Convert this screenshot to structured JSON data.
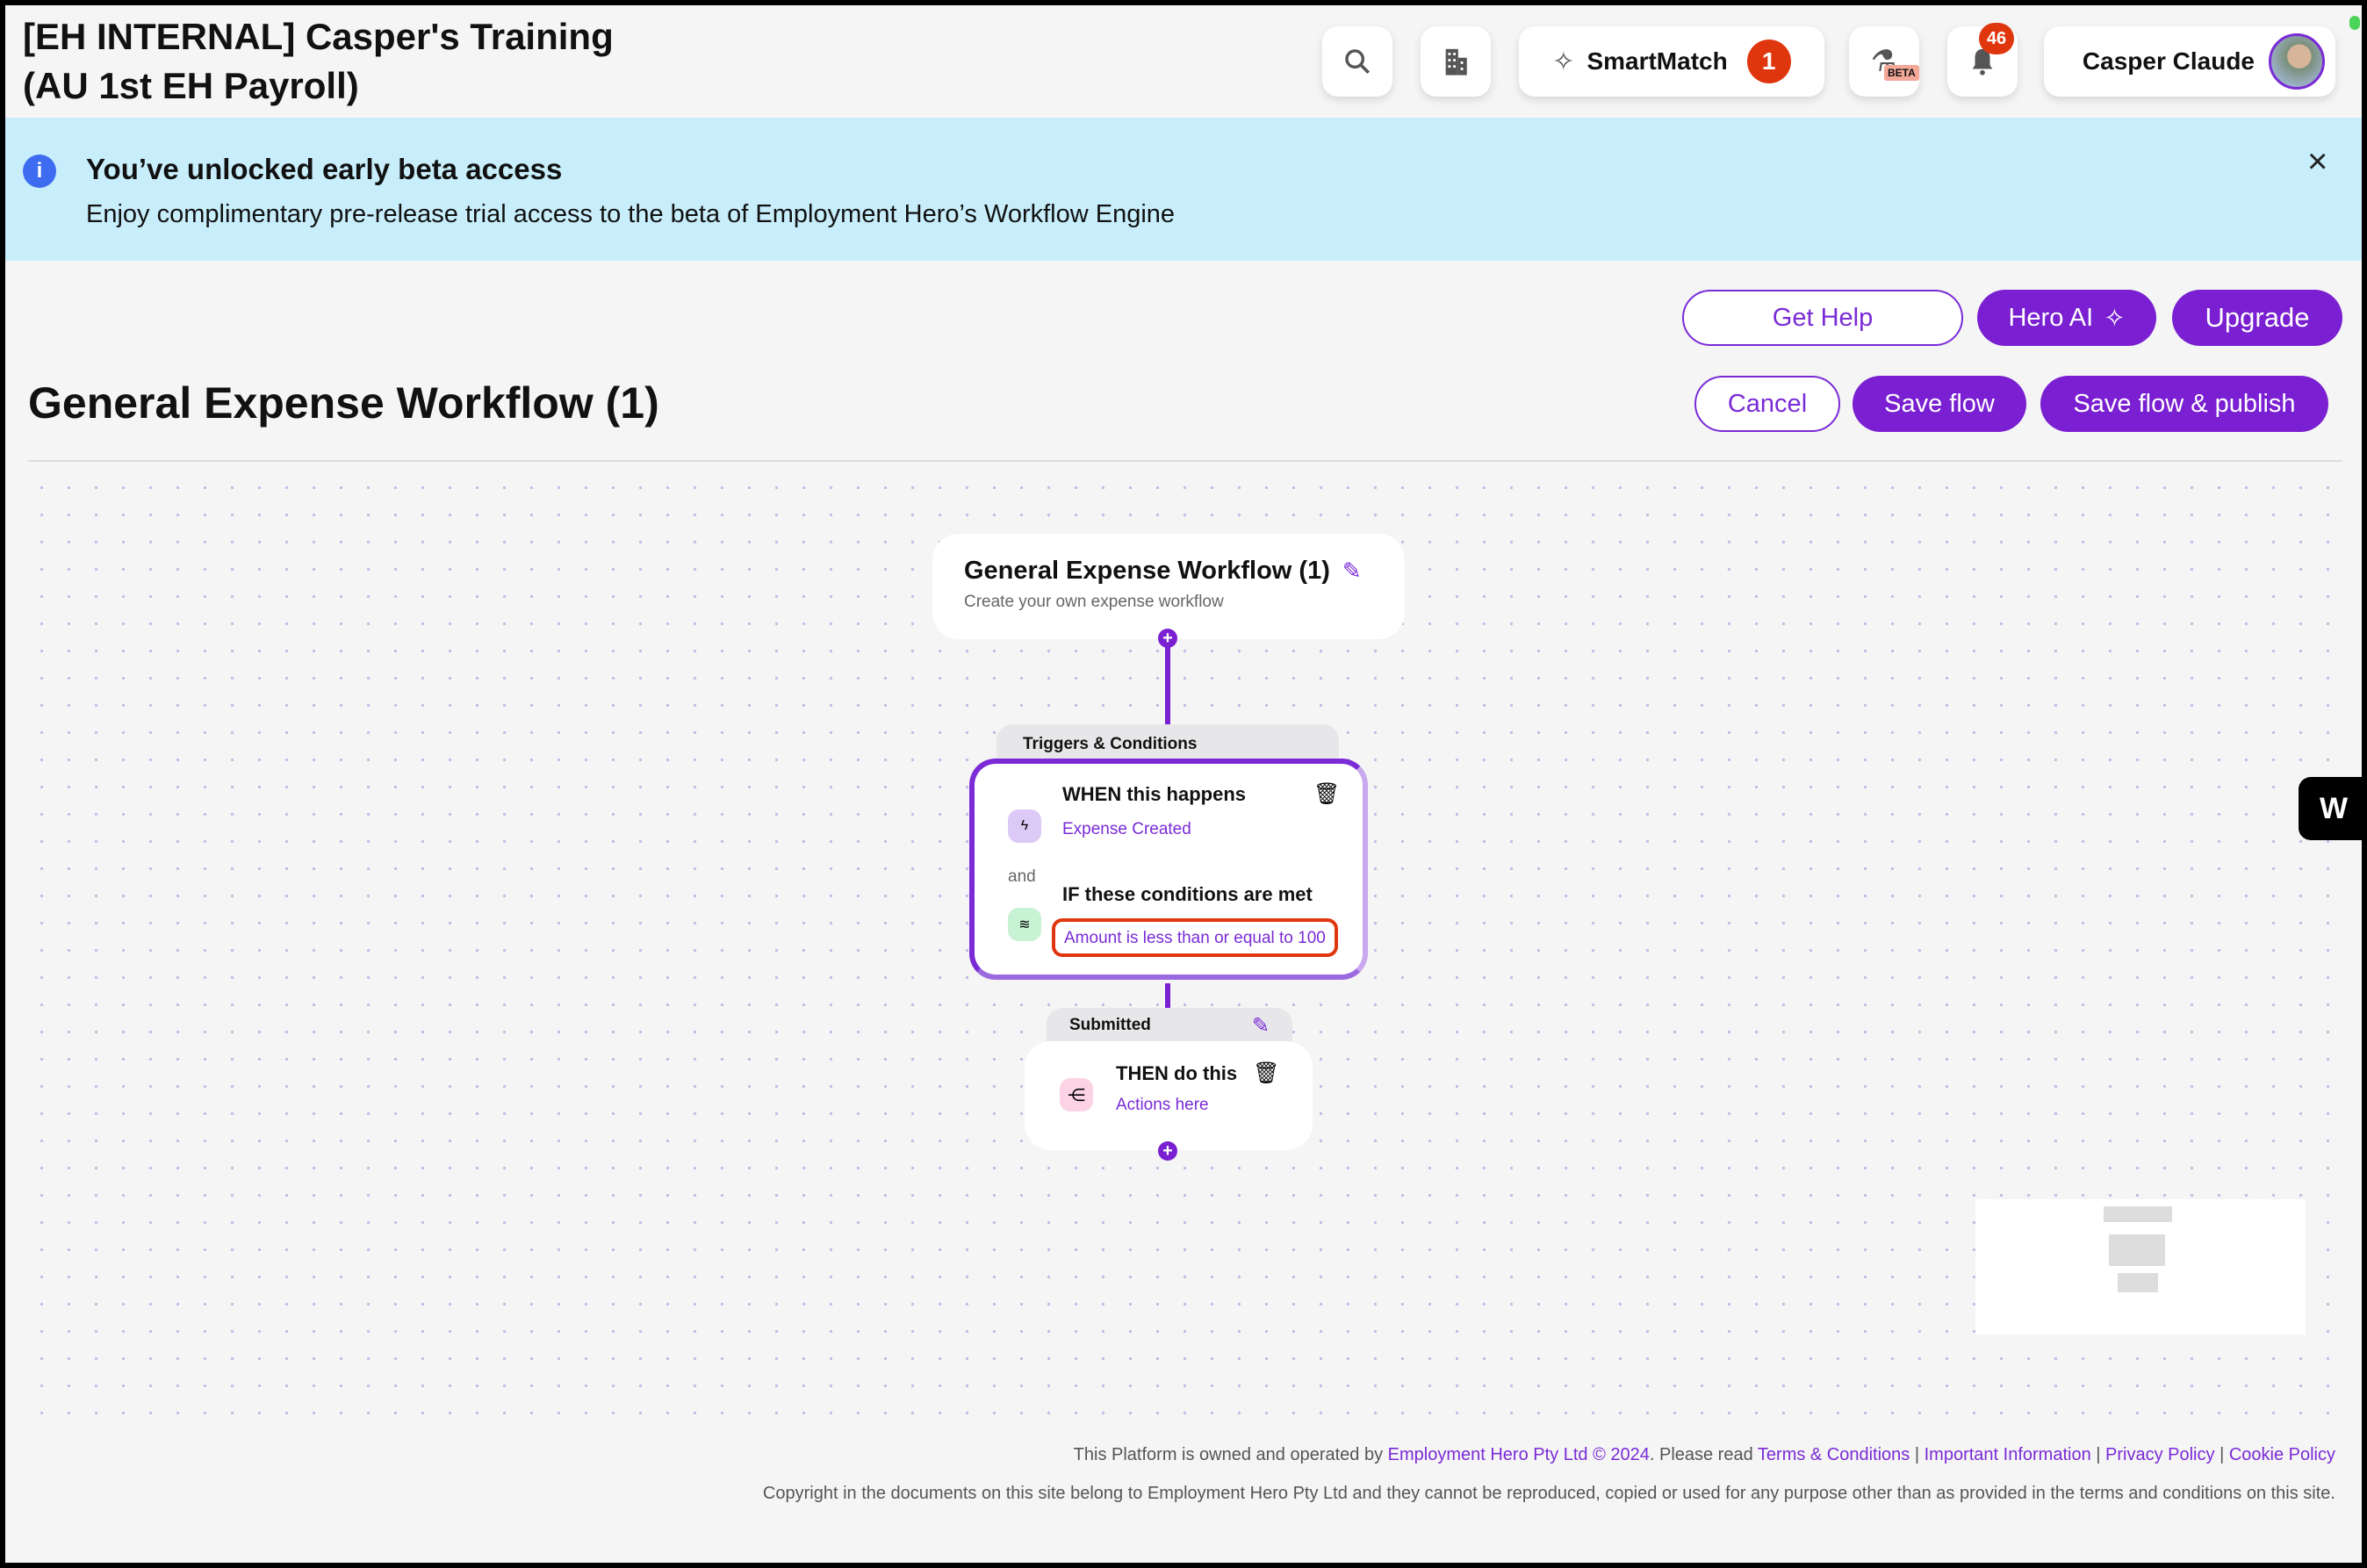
{
  "header": {
    "title_line1": "[EH INTERNAL] Casper's Training",
    "title_line2": "(AU 1st EH Payroll)",
    "smartmatch_label": "SmartMatch",
    "smartmatch_count": "1",
    "beta_label": "BETA",
    "notifications_count": "46",
    "user_name": "Casper Claude"
  },
  "banner": {
    "title": "You’ve unlocked early beta access",
    "text": "Enjoy complimentary pre-release trial access to the beta of Employment Hero’s Workflow Engine"
  },
  "toolbar": {
    "get_help": "Get Help",
    "hero_ai": "Hero AI",
    "upgrade": "Upgrade",
    "cancel": "Cancel",
    "save_flow": "Save flow",
    "save_publish": "Save flow & publish"
  },
  "page": {
    "title": "General Expense Workflow (1)"
  },
  "flow": {
    "start": {
      "title": "General Expense Workflow (1)",
      "subtitle": "Create your own expense workflow"
    },
    "triggers_tab": "Triggers & Conditions",
    "when_title": "WHEN this happens",
    "when_value": "Expense Created",
    "and_label": "and",
    "if_title": "IF these conditions are met",
    "if_value": "Amount is less than or equal to 100",
    "submitted_tab": "Submitted",
    "then_title": "THEN do this",
    "then_value": "Actions here"
  },
  "footer": {
    "line1_prefix": "This Platform is owned and operated by ",
    "company": "Employment Hero Pty Ltd © 2024",
    "line1_mid": ". Please read ",
    "terms": "Terms & Conditions",
    "important": "Important Information",
    "privacy": "Privacy Policy",
    "cookie": "Cookie Policy",
    "sep": " | ",
    "line2": "Copyright in the documents on this site belong to Employment Hero Pty Ltd and they cannot be reproduced, copied or used for any purpose other than as provided in the terms and conditions on this site."
  },
  "colors": {
    "accent": "#7a1fd1",
    "banner": "#c8eefb",
    "highlight": "#e0360e"
  }
}
